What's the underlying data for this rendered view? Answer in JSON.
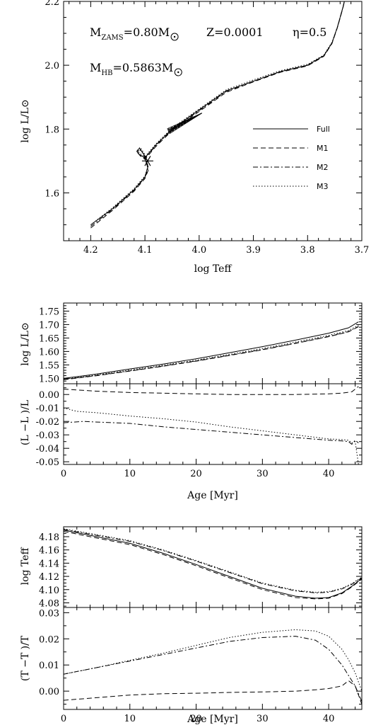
{
  "chart_data": [
    {
      "type": "line",
      "xlabel": "log Teff",
      "ylabel": "log L/L⊙",
      "xlim": [
        4.25,
        3.7
      ],
      "ylim": [
        1.45,
        2.2
      ],
      "x_ticks": [
        "4.2",
        "4.1",
        "4.0",
        "3.9",
        "3.8",
        "3.7"
      ],
      "y_ticks": [
        "1.6",
        "1.8",
        "2.0",
        "2.2"
      ],
      "annotations": {
        "mzams": "=0.80M",
        "mzams_sub": "ZAMS",
        "z": "Z=0.0001",
        "eta": "η=0.5",
        "mhb": "=0.5863M",
        "mhb_sub": "HB"
      },
      "legend_position": "right",
      "series": [
        {
          "name": "Full",
          "dash": "solid",
          "x": [
            4.2,
            4.16,
            4.12,
            4.1,
            4.095,
            4.102,
            4.11,
            4.115,
            4.11,
            4.1,
            4.08,
            4.05,
            4.0,
            3.95,
            3.9,
            3.85,
            3.8,
            3.77,
            3.755,
            3.745,
            3.735,
            3.725
          ],
          "y": [
            1.5,
            1.55,
            1.61,
            1.65,
            1.68,
            1.72,
            1.74,
            1.73,
            1.72,
            1.71,
            1.75,
            1.8,
            1.86,
            1.92,
            1.95,
            1.98,
            2.0,
            2.03,
            2.07,
            2.12,
            2.18,
            2.25
          ]
        },
        {
          "name": "M1",
          "dash": "dashed",
          "x": [
            4.2,
            4.16,
            4.12,
            4.1,
            4.093,
            4.1,
            4.108,
            4.113,
            4.108,
            4.1,
            4.08,
            4.05,
            4.0,
            3.95,
            3.9,
            3.85,
            3.8,
            3.77,
            3.755,
            3.745,
            3.735,
            3.725
          ],
          "y": [
            1.49,
            1.545,
            1.605,
            1.645,
            1.675,
            1.715,
            1.735,
            1.725,
            1.715,
            1.705,
            1.745,
            1.795,
            1.855,
            1.915,
            1.948,
            1.978,
            1.998,
            2.028,
            2.068,
            2.118,
            2.178,
            2.25
          ]
        },
        {
          "name": "M2",
          "dash": "dashdot",
          "x": [
            4.2,
            4.16,
            4.12,
            4.1,
            4.094,
            4.101,
            4.109,
            4.114,
            4.109,
            4.1,
            4.08,
            4.05,
            4.0,
            3.95,
            3.9,
            3.85,
            3.8,
            3.77,
            3.755,
            3.745,
            3.735,
            3.725
          ],
          "y": [
            1.495,
            1.548,
            1.608,
            1.648,
            1.678,
            1.718,
            1.738,
            1.728,
            1.718,
            1.708,
            1.748,
            1.798,
            1.858,
            1.918,
            1.95,
            1.98,
            2.0,
            2.03,
            2.07,
            2.12,
            2.18,
            2.25
          ]
        },
        {
          "name": "M3",
          "dash": "dotted",
          "x": [
            4.2,
            4.16,
            4.12,
            4.1,
            4.094,
            4.101,
            4.109,
            4.114,
            4.109,
            4.1,
            4.08,
            4.05,
            4.0,
            3.95,
            3.9,
            3.85,
            3.8,
            3.77,
            3.755,
            3.745,
            3.735,
            3.725
          ],
          "y": [
            1.5,
            1.553,
            1.613,
            1.653,
            1.683,
            1.723,
            1.743,
            1.733,
            1.723,
            1.713,
            1.753,
            1.803,
            1.863,
            1.923,
            1.954,
            1.983,
            2.003,
            2.032,
            2.072,
            2.12,
            2.18,
            2.25
          ]
        }
      ],
      "marker": {
        "symbol": "asterisk",
        "x": 4.095,
        "y": 1.7
      }
    },
    {
      "type": "line",
      "xlabel": "",
      "ylabel": "log L/L⊙",
      "xlim": [
        0,
        45
      ],
      "ylim": [
        1.48,
        1.78
      ],
      "y_ticks": [
        "1.50",
        "1.55",
        "1.60",
        "1.65",
        "1.70",
        "1.75"
      ],
      "series": [
        {
          "name": "Full",
          "dash": "solid",
          "x": [
            0,
            5,
            10,
            15,
            20,
            25,
            30,
            35,
            40,
            43,
            44.5
          ],
          "y": [
            1.5,
            1.516,
            1.535,
            1.553,
            1.573,
            1.595,
            1.618,
            1.642,
            1.668,
            1.688,
            1.71
          ]
        },
        {
          "name": "M1",
          "dash": "dashed",
          "x": [
            0,
            5,
            10,
            15,
            20,
            25,
            30,
            35,
            40,
            43,
            44.5
          ],
          "y": [
            1.495,
            1.51,
            1.527,
            1.545,
            1.564,
            1.585,
            1.606,
            1.63,
            1.655,
            1.673,
            1.692
          ]
        },
        {
          "name": "M2",
          "dash": "dashdot",
          "x": [
            0,
            5,
            10,
            15,
            20,
            25,
            30,
            35,
            40,
            43,
            44.5
          ],
          "y": [
            1.496,
            1.511,
            1.528,
            1.546,
            1.565,
            1.586,
            1.607,
            1.631,
            1.656,
            1.674,
            1.693
          ]
        },
        {
          "name": "M3",
          "dash": "dotted",
          "x": [
            0,
            5,
            10,
            15,
            20,
            25,
            30,
            35,
            40,
            43,
            44.5
          ],
          "y": [
            1.497,
            1.513,
            1.531,
            1.549,
            1.568,
            1.589,
            1.611,
            1.635,
            1.66,
            1.678,
            1.697
          ]
        }
      ]
    },
    {
      "type": "line",
      "xlabel": "Age [Myr]",
      "ylabel": "(L  −L )/L",
      "ylabel_subs": [
        "Mi",
        "f",
        "f"
      ],
      "xlim": [
        0,
        45
      ],
      "ylim": [
        -0.052,
        0.008
      ],
      "x_ticks": [
        "0",
        "10",
        "20",
        "30",
        "40"
      ],
      "y_ticks": [
        "0.00",
        "-0.01",
        "-0.02",
        "-0.03",
        "-0.04",
        "-0.05"
      ],
      "series": [
        {
          "name": "M1",
          "dash": "dashed",
          "x": [
            0,
            5,
            10,
            15,
            20,
            25,
            30,
            35,
            40,
            42,
            43.5,
            44,
            44.5
          ],
          "y": [
            0.004,
            0.0025,
            0.0015,
            0.001,
            0.0005,
            0.0,
            0.0,
            0.0,
            0.0005,
            0.001,
            0.002,
            0.004,
            0.006
          ]
        },
        {
          "name": "M2",
          "dash": "dashdot",
          "x": [
            0,
            3,
            5,
            10,
            15,
            20,
            25,
            30,
            35,
            40,
            42,
            43,
            43.5,
            44,
            44.5
          ],
          "y": [
            -0.021,
            -0.02,
            -0.0205,
            -0.0215,
            -0.024,
            -0.026,
            -0.028,
            -0.03,
            -0.032,
            -0.034,
            -0.0345,
            -0.035,
            -0.037,
            -0.034,
            -0.036
          ]
        },
        {
          "name": "M3",
          "dash": "dotted",
          "x": [
            0,
            2,
            5,
            10,
            15,
            20,
            25,
            30,
            35,
            40,
            42,
            43,
            43.5,
            44,
            44.5
          ],
          "y": [
            -0.01,
            -0.0125,
            -0.0135,
            -0.016,
            -0.018,
            -0.0205,
            -0.024,
            -0.027,
            -0.03,
            -0.033,
            -0.0335,
            -0.034,
            -0.036,
            -0.035,
            -0.052
          ]
        }
      ]
    },
    {
      "type": "line",
      "xlabel": "",
      "ylabel": "log Teff",
      "xlim": [
        0,
        45
      ],
      "ylim": [
        4.073,
        4.195
      ],
      "y_ticks": [
        "4.08",
        "4.10",
        "4.12",
        "4.14",
        "4.16",
        "4.18"
      ],
      "series": [
        {
          "name": "Full",
          "dash": "solid",
          "x": [
            0,
            5,
            10,
            15,
            20,
            25,
            30,
            35,
            38,
            40,
            42,
            43.5,
            45
          ],
          "y": [
            4.19,
            4.18,
            4.17,
            4.155,
            4.138,
            4.12,
            4.102,
            4.09,
            4.087,
            4.088,
            4.095,
            4.105,
            4.117
          ]
        },
        {
          "name": "M1",
          "dash": "dashed",
          "x": [
            0,
            5,
            10,
            15,
            20,
            25,
            30,
            35,
            38,
            40,
            42,
            43.5,
            45
          ],
          "y": [
            4.188,
            4.178,
            4.168,
            4.153,
            4.136,
            4.118,
            4.1,
            4.088,
            4.086,
            4.087,
            4.094,
            4.104,
            4.116
          ]
        },
        {
          "name": "M2",
          "dash": "dashdot",
          "x": [
            0,
            5,
            10,
            15,
            20,
            25,
            30,
            35,
            38,
            40,
            42,
            43.5,
            45
          ],
          "y": [
            4.191,
            4.182,
            4.173,
            4.159,
            4.143,
            4.126,
            4.109,
            4.098,
            4.095,
            4.096,
            4.101,
            4.108,
            4.118
          ]
        },
        {
          "name": "M3",
          "dash": "dotted",
          "x": [
            0,
            5,
            10,
            15,
            20,
            25,
            30,
            35,
            38,
            40,
            42,
            43.5,
            45
          ],
          "y": [
            4.192,
            4.183,
            4.174,
            4.16,
            4.144,
            4.127,
            4.11,
            4.099,
            4.096,
            4.097,
            4.102,
            4.109,
            4.119
          ]
        }
      ]
    },
    {
      "type": "line",
      "xlabel": "Age [Myr]",
      "ylabel": "(T  −T )/T",
      "ylabel_subs": [
        "Mi",
        "f",
        "f"
      ],
      "xlim": [
        0,
        45
      ],
      "ylim": [
        -0.007,
        0.032
      ],
      "x_ticks": [
        "0",
        "10",
        "20",
        "30",
        "40"
      ],
      "y_ticks": [
        "0.00",
        "0.01",
        "0.02",
        "0.03"
      ],
      "series": [
        {
          "name": "M1",
          "dash": "dashed",
          "x": [
            0,
            5,
            10,
            15,
            20,
            25,
            30,
            35,
            38,
            40,
            42,
            43,
            44,
            45
          ],
          "y": [
            -0.0035,
            -0.0025,
            -0.0015,
            -0.001,
            -0.0008,
            -0.0005,
            -0.0003,
            0.0,
            0.0005,
            0.001,
            0.002,
            0.004,
            0.002,
            -0.005
          ]
        },
        {
          "name": "M2",
          "dash": "dashdot",
          "x": [
            0,
            5,
            10,
            15,
            20,
            25,
            30,
            35,
            38,
            40,
            42,
            43,
            44,
            45
          ],
          "y": [
            0.0065,
            0.009,
            0.0115,
            0.014,
            0.0165,
            0.019,
            0.0205,
            0.021,
            0.0195,
            0.016,
            0.01,
            0.006,
            0.002,
            -0.004
          ]
        },
        {
          "name": "M3",
          "dash": "dotted",
          "x": [
            0,
            5,
            10,
            15,
            20,
            25,
            30,
            35,
            38,
            40,
            42,
            43,
            44,
            45
          ],
          "y": [
            0.0065,
            0.009,
            0.0118,
            0.0145,
            0.0175,
            0.0205,
            0.0225,
            0.0235,
            0.023,
            0.021,
            0.016,
            0.012,
            0.007,
            0.0
          ]
        }
      ]
    }
  ]
}
